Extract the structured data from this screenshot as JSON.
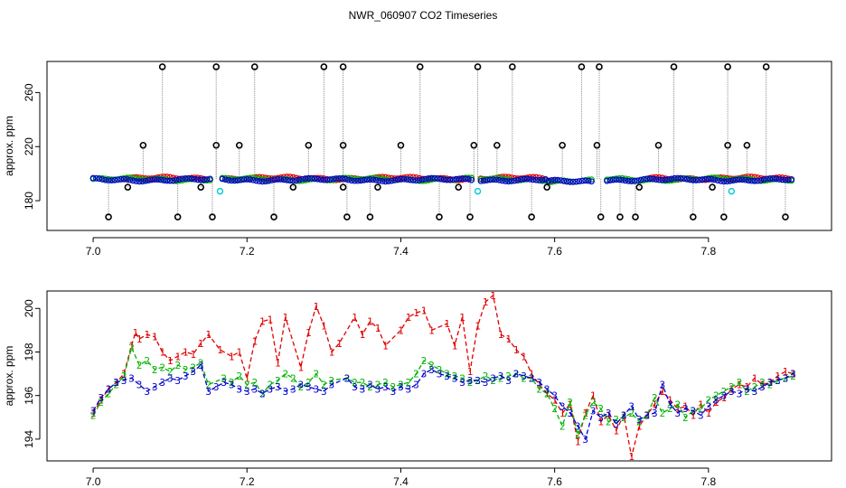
{
  "title": "NWR_060907  CO2 Timeseries",
  "colors": {
    "red": "#e00000",
    "green": "#00b400",
    "blue": "#0000cc",
    "black": "#000000",
    "cyan": "#00c8d8",
    "grey": "#8c8c8c"
  },
  "chart_data": [
    {
      "type": "scatter",
      "title": "NWR_060907  CO2 Timeseries",
      "xlabel": "",
      "ylabel": "approx. ppm",
      "xlim": [
        6.94,
        7.96
      ],
      "ylim": [
        158,
        283
      ],
      "x_ticks": [
        7.0,
        7.2,
        7.4,
        7.6,
        7.8
      ],
      "x_tick_labels": [
        "7.0",
        "7.2",
        "7.4",
        "7.6",
        "7.8"
      ],
      "y_ticks": [
        180,
        220,
        260
      ],
      "y_tick_labels": [
        "180",
        "220",
        "260"
      ],
      "series": [
        {
          "color": "red",
          "marker": "circle",
          "x_start": 7.04,
          "x_end": 7.91,
          "step": 0.004,
          "level": 196.5
        },
        {
          "color": "green",
          "marker": "circle",
          "x_start": 7.0,
          "x_end": 7.91,
          "step": 0.004,
          "level": 195.8
        },
        {
          "color": "blue",
          "marker": "circle",
          "x_start": 7.0,
          "x_end": 7.91,
          "step": 0.004,
          "level": 195.5
        }
      ],
      "spikes": [
        {
          "x": 7.09,
          "y": 279
        },
        {
          "x": 7.16,
          "y": 279
        },
        {
          "x": 7.21,
          "y": 279
        },
        {
          "x": 7.3,
          "y": 279
        },
        {
          "x": 7.325,
          "y": 279
        },
        {
          "x": 7.425,
          "y": 279
        },
        {
          "x": 7.5,
          "y": 279
        },
        {
          "x": 7.545,
          "y": 279
        },
        {
          "x": 7.635,
          "y": 279
        },
        {
          "x": 7.658,
          "y": 279
        },
        {
          "x": 7.755,
          "y": 279
        },
        {
          "x": 7.825,
          "y": 279
        },
        {
          "x": 7.875,
          "y": 279
        },
        {
          "x": 7.065,
          "y": 221
        },
        {
          "x": 7.16,
          "y": 221
        },
        {
          "x": 7.19,
          "y": 221
        },
        {
          "x": 7.28,
          "y": 221
        },
        {
          "x": 7.325,
          "y": 221
        },
        {
          "x": 7.4,
          "y": 221
        },
        {
          "x": 7.495,
          "y": 221
        },
        {
          "x": 7.525,
          "y": 221
        },
        {
          "x": 7.61,
          "y": 221
        },
        {
          "x": 7.655,
          "y": 221
        },
        {
          "x": 7.735,
          "y": 221
        },
        {
          "x": 7.825,
          "y": 221
        },
        {
          "x": 7.85,
          "y": 221
        },
        {
          "x": 7.02,
          "y": 168
        },
        {
          "x": 7.11,
          "y": 168
        },
        {
          "x": 7.155,
          "y": 168
        },
        {
          "x": 7.235,
          "y": 168
        },
        {
          "x": 7.33,
          "y": 168
        },
        {
          "x": 7.36,
          "y": 168
        },
        {
          "x": 7.45,
          "y": 168
        },
        {
          "x": 7.49,
          "y": 168
        },
        {
          "x": 7.57,
          "y": 168
        },
        {
          "x": 7.66,
          "y": 168
        },
        {
          "x": 7.685,
          "y": 168
        },
        {
          "x": 7.705,
          "y": 168
        },
        {
          "x": 7.78,
          "y": 168
        },
        {
          "x": 7.82,
          "y": 168
        },
        {
          "x": 7.9,
          "y": 168
        },
        {
          "x": 7.045,
          "y": 190
        },
        {
          "x": 7.14,
          "y": 190
        },
        {
          "x": 7.26,
          "y": 190
        },
        {
          "x": 7.325,
          "y": 190
        },
        {
          "x": 7.37,
          "y": 190
        },
        {
          "x": 7.475,
          "y": 190
        },
        {
          "x": 7.59,
          "y": 190
        },
        {
          "x": 7.71,
          "y": 190
        },
        {
          "x": 7.805,
          "y": 190
        }
      ],
      "cyan_points": [
        {
          "x": 7.165,
          "y": 187
        },
        {
          "x": 7.5,
          "y": 187
        },
        {
          "x": 7.83,
          "y": 187
        }
      ]
    },
    {
      "type": "line",
      "xlabel": "",
      "ylabel": "approx. ppm",
      "xlim": [
        6.94,
        7.96
      ],
      "ylim": [
        193.0,
        200.8
      ],
      "x_ticks": [
        7.0,
        7.2,
        7.4,
        7.6,
        7.8
      ],
      "x_tick_labels": [
        "7.0",
        "7.2",
        "7.4",
        "7.6",
        "7.8"
      ],
      "y_ticks": [
        194,
        196,
        198,
        200
      ],
      "y_tick_labels": [
        "194",
        "196",
        "198",
        "200"
      ],
      "series": [
        {
          "marker": "1",
          "color": "red",
          "x": [
            7.0,
            7.01,
            7.02,
            7.03,
            7.04,
            7.05,
            7.055,
            7.06,
            7.07,
            7.08,
            7.09,
            7.1,
            7.11,
            7.12,
            7.13,
            7.14,
            7.15,
            7.165,
            7.18,
            7.19,
            7.2,
            7.21,
            7.22,
            7.23,
            7.24,
            7.25,
            7.27,
            7.28,
            7.29,
            7.3,
            7.31,
            7.32,
            7.34,
            7.35,
            7.36,
            7.37,
            7.38,
            7.4,
            7.41,
            7.42,
            7.43,
            7.44,
            7.46,
            7.47,
            7.48,
            7.49,
            7.5,
            7.51,
            7.52,
            7.53,
            7.54,
            7.55,
            7.56,
            7.57,
            7.58,
            7.59,
            7.6,
            7.61,
            7.62,
            7.63,
            7.64,
            7.65,
            7.66,
            7.67,
            7.68,
            7.69,
            7.7,
            7.71,
            7.72,
            7.73,
            7.74,
            7.75,
            7.76,
            7.77,
            7.78,
            7.79,
            7.8,
            7.81,
            7.82,
            7.83,
            7.84,
            7.85,
            7.86,
            7.87,
            7.88,
            7.89,
            7.9,
            7.91
          ],
          "y": [
            195.2,
            195.8,
            196.3,
            196.6,
            197.0,
            198.3,
            198.9,
            198.6,
            198.8,
            198.7,
            198.0,
            197.6,
            197.8,
            198.0,
            197.9,
            198.4,
            198.8,
            198.1,
            197.8,
            198.0,
            196.8,
            198.5,
            199.4,
            199.5,
            197.5,
            199.6,
            197.3,
            198.9,
            200.1,
            199.2,
            198.0,
            198.4,
            199.6,
            198.8,
            199.4,
            199.1,
            198.3,
            199.0,
            199.6,
            199.8,
            199.9,
            199.0,
            199.3,
            198.3,
            199.6,
            197.1,
            199.2,
            200.3,
            200.6,
            198.8,
            198.6,
            198.1,
            197.8,
            197.0,
            196.5,
            196.1,
            195.8,
            195.2,
            195.6,
            193.9,
            195.2,
            196.0,
            194.8,
            195.1,
            194.4,
            195.1,
            193.2,
            194.6,
            195.1,
            195.6,
            196.2,
            195.8,
            195.4,
            195.5,
            195.1,
            195.6,
            195.2,
            195.7,
            195.9,
            196.3,
            196.5,
            196.4,
            196.8,
            196.5,
            196.6,
            196.9,
            197.1,
            197.0
          ]
        },
        {
          "marker": "2",
          "color": "green",
          "x": [
            7.0,
            7.01,
            7.02,
            7.03,
            7.04,
            7.05,
            7.06,
            7.07,
            7.08,
            7.09,
            7.1,
            7.11,
            7.12,
            7.13,
            7.14,
            7.15,
            7.17,
            7.18,
            7.19,
            7.2,
            7.21,
            7.22,
            7.23,
            7.24,
            7.25,
            7.26,
            7.27,
            7.28,
            7.29,
            7.3,
            7.31,
            7.33,
            7.34,
            7.35,
            7.36,
            7.37,
            7.38,
            7.39,
            7.4,
            7.41,
            7.42,
            7.43,
            7.44,
            7.45,
            7.46,
            7.47,
            7.48,
            7.49,
            7.5,
            7.51,
            7.52,
            7.53,
            7.54,
            7.55,
            7.56,
            7.57,
            7.58,
            7.59,
            7.6,
            7.61,
            7.62,
            7.63,
            7.64,
            7.65,
            7.66,
            7.67,
            7.68,
            7.69,
            7.7,
            7.71,
            7.72,
            7.73,
            7.74,
            7.75,
            7.76,
            7.77,
            7.78,
            7.79,
            7.8,
            7.81,
            7.82,
            7.83,
            7.84,
            7.85,
            7.86,
            7.87,
            7.88,
            7.89,
            7.9,
            7.91
          ],
          "y": [
            195.1,
            195.7,
            196.1,
            196.5,
            196.9,
            198.2,
            197.4,
            197.6,
            197.2,
            197.3,
            197.1,
            197.4,
            197.2,
            197.3,
            197.5,
            196.5,
            196.8,
            196.6,
            196.9,
            196.5,
            196.6,
            196.1,
            196.5,
            196.7,
            197.0,
            196.8,
            196.4,
            196.6,
            197.0,
            196.5,
            196.7,
            196.8,
            196.6,
            196.6,
            196.4,
            196.5,
            196.6,
            196.4,
            196.5,
            196.6,
            197.0,
            197.6,
            197.4,
            197.2,
            197.0,
            196.9,
            196.8,
            196.6,
            196.7,
            196.9,
            196.7,
            196.8,
            196.9,
            197.0,
            196.8,
            196.8,
            196.3,
            196.1,
            195.4,
            194.6,
            195.7,
            194.2,
            195.1,
            195.7,
            195.4,
            194.8,
            194.9,
            195.0,
            195.2,
            194.8,
            195.1,
            195.9,
            195.2,
            195.4,
            195.6,
            195.0,
            195.3,
            195.4,
            195.8,
            196.0,
            196.2,
            196.4,
            196.6,
            196.2,
            196.4,
            196.6,
            196.5,
            196.7,
            196.8,
            196.9
          ]
        },
        {
          "marker": "3",
          "color": "blue",
          "x": [
            7.0,
            7.01,
            7.02,
            7.03,
            7.04,
            7.05,
            7.06,
            7.07,
            7.08,
            7.09,
            7.1,
            7.11,
            7.12,
            7.13,
            7.14,
            7.15,
            7.16,
            7.17,
            7.18,
            7.19,
            7.2,
            7.21,
            7.22,
            7.23,
            7.24,
            7.25,
            7.26,
            7.27,
            7.28,
            7.29,
            7.3,
            7.31,
            7.33,
            7.34,
            7.35,
            7.36,
            7.37,
            7.38,
            7.39,
            7.4,
            7.41,
            7.42,
            7.43,
            7.44,
            7.45,
            7.46,
            7.47,
            7.48,
            7.49,
            7.5,
            7.51,
            7.52,
            7.53,
            7.54,
            7.55,
            7.56,
            7.57,
            7.58,
            7.59,
            7.6,
            7.61,
            7.62,
            7.63,
            7.64,
            7.65,
            7.66,
            7.67,
            7.68,
            7.69,
            7.7,
            7.71,
            7.72,
            7.73,
            7.74,
            7.75,
            7.76,
            7.77,
            7.78,
            7.79,
            7.8,
            7.81,
            7.82,
            7.83,
            7.84,
            7.85,
            7.86,
            7.87,
            7.88,
            7.89,
            7.9,
            7.91
          ],
          "y": [
            195.3,
            195.9,
            196.3,
            196.6,
            196.7,
            196.8,
            196.5,
            196.2,
            196.4,
            196.6,
            196.8,
            196.7,
            196.9,
            197.1,
            197.4,
            196.2,
            196.4,
            196.6,
            196.5,
            196.3,
            196.2,
            196.3,
            196.1,
            196.3,
            196.4,
            196.2,
            196.3,
            196.5,
            196.4,
            196.3,
            196.2,
            196.5,
            196.8,
            196.4,
            196.3,
            196.5,
            196.3,
            196.4,
            196.2,
            196.4,
            196.3,
            196.5,
            197.0,
            197.2,
            197.0,
            196.9,
            196.8,
            196.6,
            196.7,
            196.7,
            196.6,
            196.8,
            196.9,
            196.7,
            197.0,
            196.9,
            196.8,
            196.6,
            196.3,
            196.0,
            195.5,
            195.2,
            194.6,
            194.0,
            195.3,
            195.0,
            195.2,
            194.7,
            195.1,
            195.5,
            194.9,
            195.1,
            195.2,
            196.5,
            195.6,
            195.2,
            195.4,
            195.3,
            195.1,
            195.5,
            195.8,
            196.0,
            196.2,
            196.1,
            196.3,
            196.2,
            196.4,
            196.6,
            196.7,
            196.8,
            197.0
          ]
        }
      ]
    }
  ]
}
